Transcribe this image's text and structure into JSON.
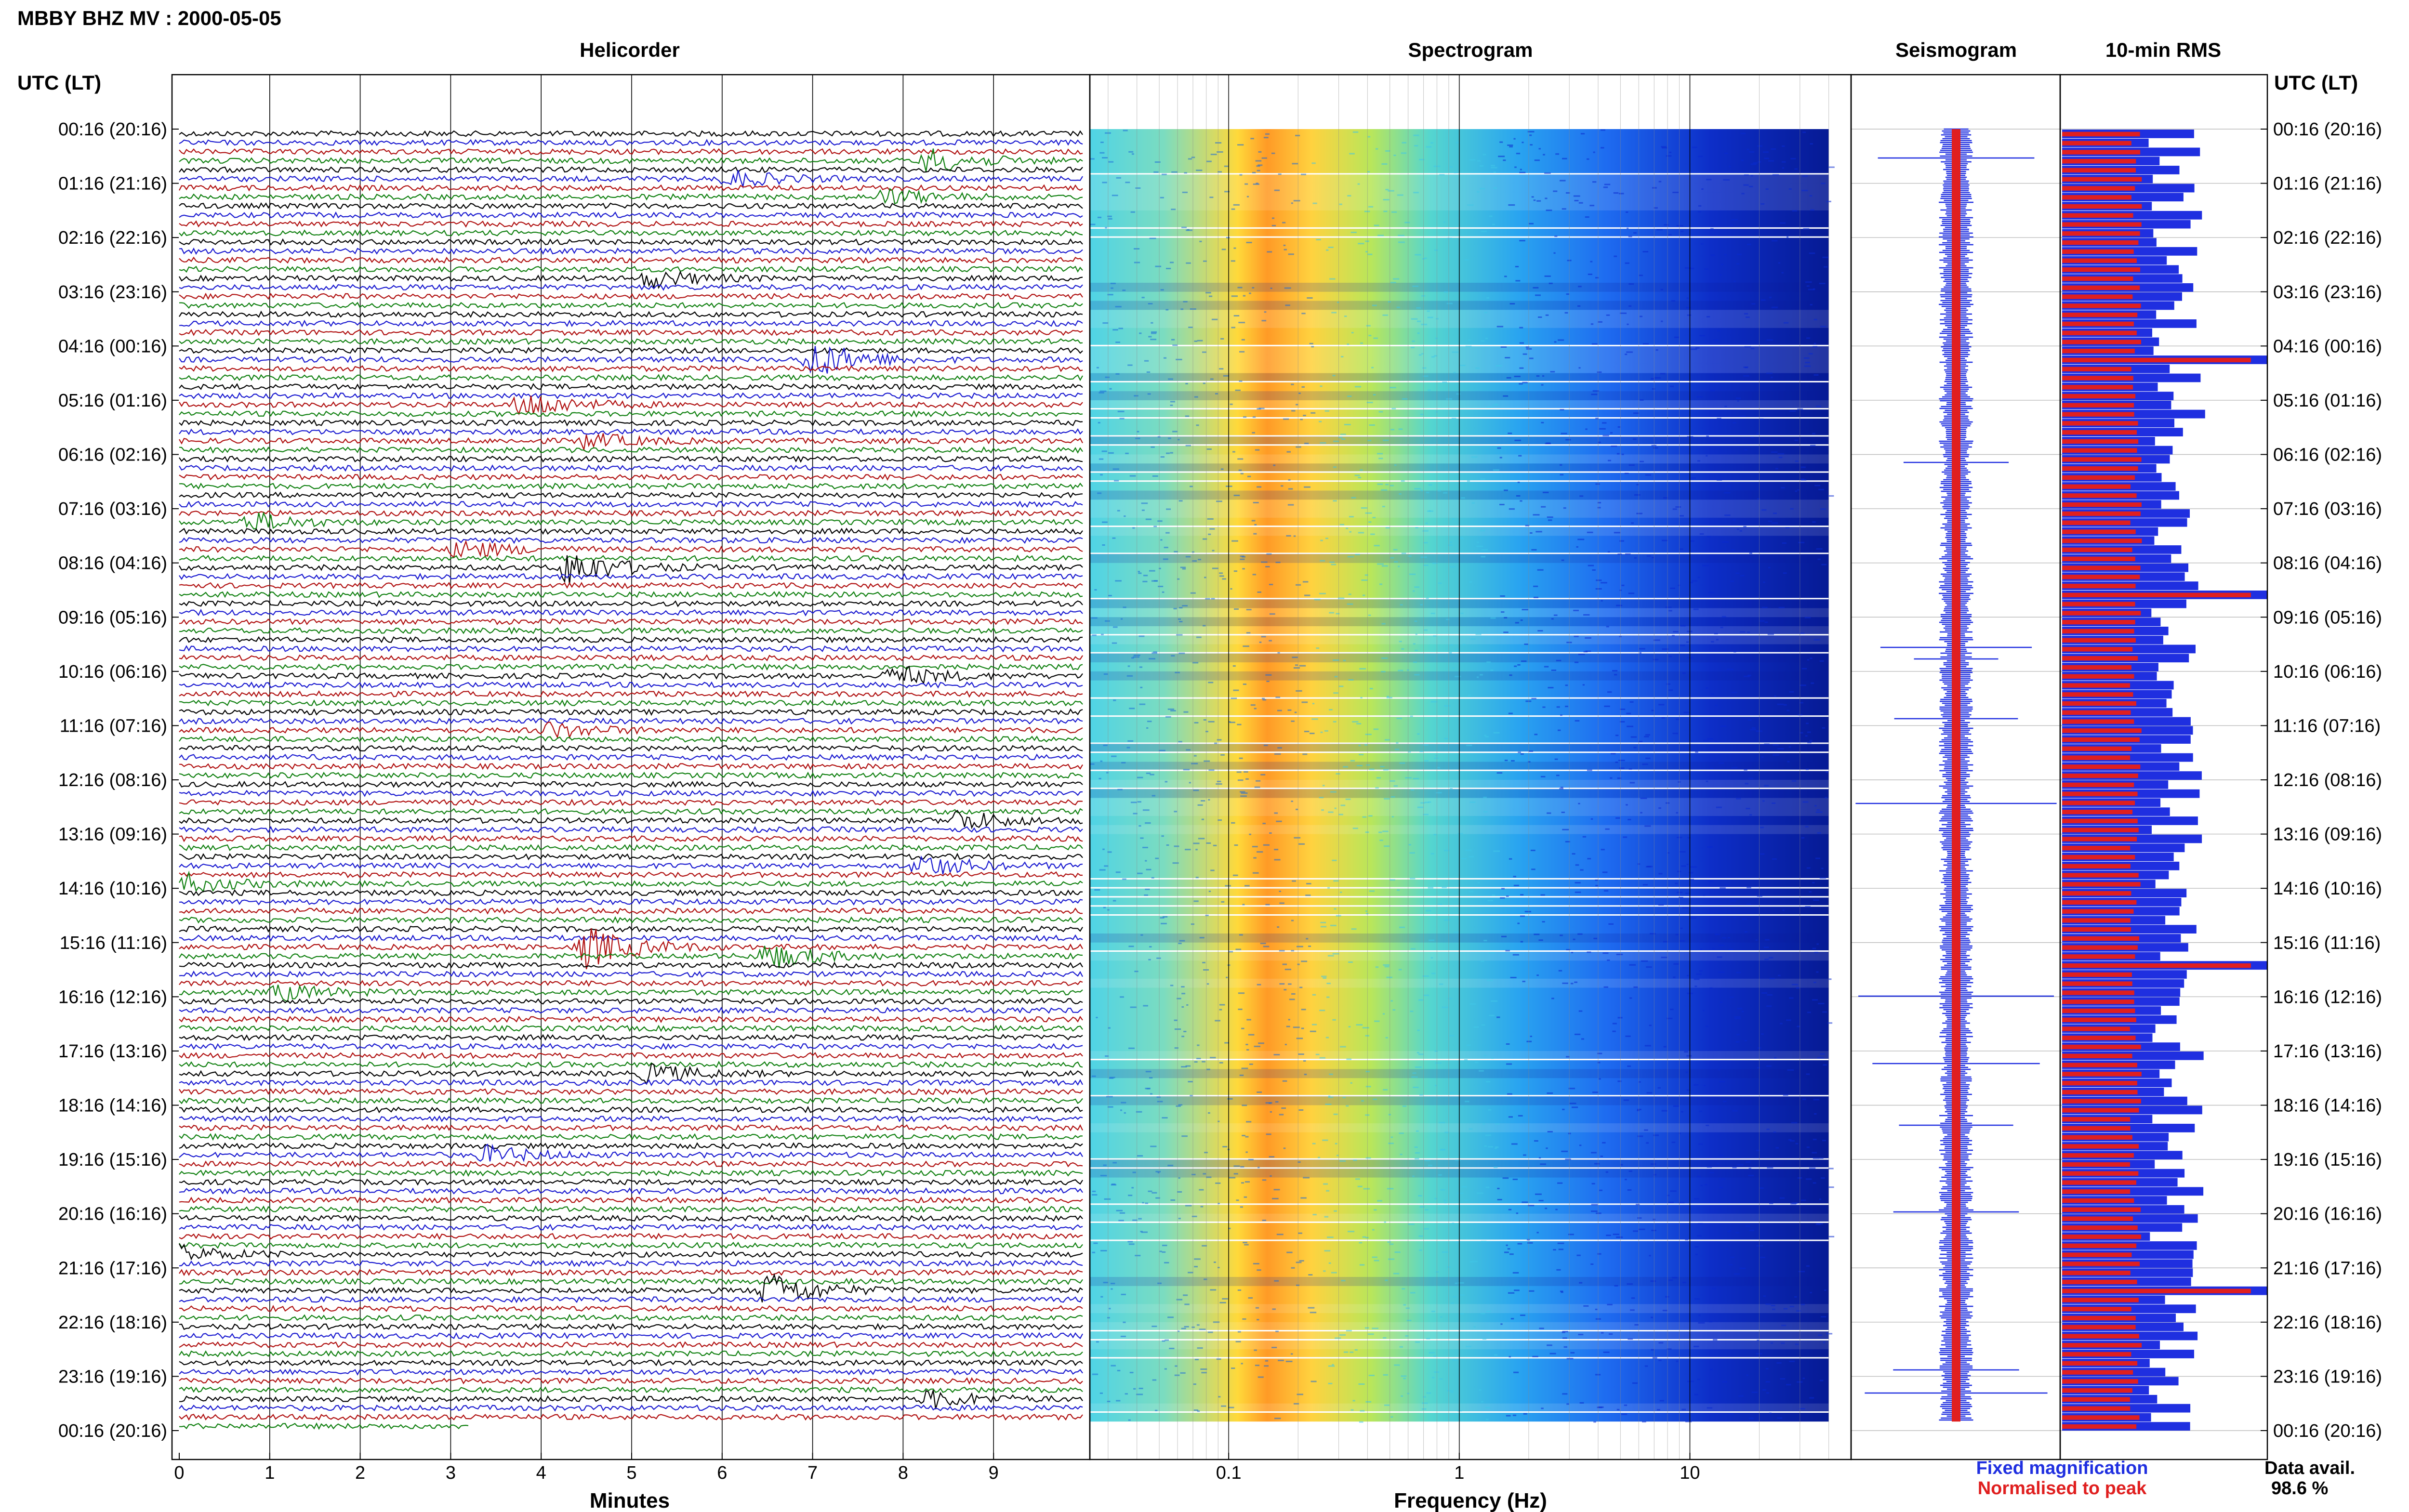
{
  "header": {
    "station_title": "MBBY BHZ MV : 2000-05-05",
    "time_axis_label": "UTC (LT)"
  },
  "panels": {
    "helicorder": "Helicorder",
    "spectrogram": "Spectrogram",
    "seismogram": "Seismogram",
    "rms": "10-min RMS"
  },
  "time_labels": [
    "00:16 (20:16)",
    "01:16 (21:16)",
    "02:16 (22:16)",
    "03:16 (23:16)",
    "04:16 (00:16)",
    "05:16 (01:16)",
    "06:16 (02:16)",
    "07:16 (03:16)",
    "08:16 (04:16)",
    "09:16 (05:16)",
    "10:16 (06:16)",
    "11:16 (07:16)",
    "12:16 (08:16)",
    "13:16 (09:16)",
    "14:16 (10:16)",
    "15:16 (11:16)",
    "16:16 (12:16)",
    "17:16 (13:16)",
    "18:16 (14:16)",
    "19:16 (15:16)",
    "20:16 (16:16)",
    "21:16 (17:16)",
    "22:16 (18:16)",
    "23:16 (19:16)",
    "00:16 (20:16)"
  ],
  "legend": {
    "fixed": "Fixed magnification",
    "normalised": "Normalised to peak",
    "availability_label": "Data avail.",
    "availability_value": "98.6 %"
  },
  "colors": {
    "trace_colors": [
      "#000000",
      "#1a1ad0",
      "#b01010",
      "#108010"
    ],
    "rms_fixed": "#1f2fe0",
    "rms_normalised": "#e01f1f"
  },
  "chart_data": [
    {
      "type": "line",
      "name": "helicorder",
      "title": "Helicorder",
      "xlabel": "Minutes",
      "xticks": [
        "0",
        "1",
        "2",
        "3",
        "4",
        "5",
        "6",
        "7",
        "8",
        "9"
      ],
      "xlim": [
        0,
        10
      ],
      "row_count": 144,
      "row_minutes": 10,
      "trace_color_cycle": [
        "black",
        "blue",
        "red",
        "green"
      ],
      "events": [
        {
          "row": 3,
          "start_min": 8.3,
          "amp": 3.2
        },
        {
          "row": 5,
          "start_min": 6.1,
          "amp": 2.2
        },
        {
          "row": 7,
          "start_min": 7.8,
          "amp": 2.0
        },
        {
          "row": 16,
          "start_min": 5.2,
          "amp": 2.4
        },
        {
          "row": 25,
          "start_min": 7.0,
          "amp": 5.0
        },
        {
          "row": 30,
          "start_min": 3.8,
          "amp": 3.6
        },
        {
          "row": 34,
          "start_min": 4.5,
          "amp": 2.0
        },
        {
          "row": 43,
          "start_min": 0.8,
          "amp": 2.4
        },
        {
          "row": 46,
          "start_min": 3.1,
          "amp": 2.5
        },
        {
          "row": 48,
          "start_min": 4.3,
          "amp": 5.0
        },
        {
          "row": 60,
          "start_min": 7.9,
          "amp": 2.6
        },
        {
          "row": 66,
          "start_min": 4.1,
          "amp": 2.1
        },
        {
          "row": 76,
          "start_min": 8.6,
          "amp": 2.8
        },
        {
          "row": 81,
          "start_min": 8.2,
          "amp": 3.0
        },
        {
          "row": 83,
          "start_min": 0.0,
          "amp": 2.8
        },
        {
          "row": 90,
          "start_min": 4.5,
          "amp": 5.5
        },
        {
          "row": 91,
          "start_min": 6.5,
          "amp": 3.3
        },
        {
          "row": 95,
          "start_min": 1.1,
          "amp": 2.2
        },
        {
          "row": 104,
          "start_min": 5.2,
          "amp": 2.6
        },
        {
          "row": 113,
          "start_min": 3.4,
          "amp": 2.2
        },
        {
          "row": 124,
          "start_min": 0.0,
          "amp": 2.2
        },
        {
          "row": 128,
          "start_min": 6.5,
          "amp": 4.8
        },
        {
          "row": 140,
          "start_min": 8.3,
          "amp": 2.4
        }
      ]
    },
    {
      "type": "heatmap",
      "name": "spectrogram",
      "title": "Spectrogram",
      "xlabel": "Frequency (Hz)",
      "xscale": "log",
      "xticks": [
        "0.1",
        "1",
        "10"
      ],
      "xlim": [
        0.025,
        50
      ],
      "data_max_freq": 40,
      "peak_band_hz": [
        0.2,
        0.3
      ],
      "colormap": "jet"
    },
    {
      "type": "line",
      "name": "seismogram",
      "title": "Seismogram",
      "series": [
        {
          "name": "Fixed magnification",
          "color": "#1f2fe0"
        },
        {
          "name": "Normalised to peak",
          "color": "#e01f1f"
        }
      ]
    },
    {
      "type": "bar",
      "name": "10-min RMS",
      "title": "10-min RMS",
      "bar_count": 144,
      "series": [
        {
          "name": "Fixed magnification",
          "color": "#1f2fe0"
        },
        {
          "name": "Normalised to peak",
          "color": "#e01f1f"
        }
      ],
      "peak_rows": [
        25,
        51,
        92,
        128
      ]
    }
  ]
}
